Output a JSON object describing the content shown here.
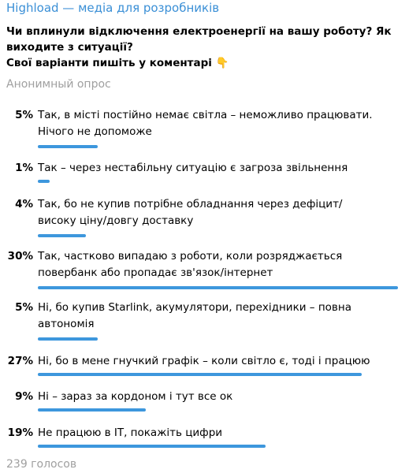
{
  "header": {
    "channel": "Highload — медіа для розробників"
  },
  "question": {
    "lines": [
      "Чи вплинули відключення електроенергії на вашу роботу? Як",
      "виходите з ситуації?",
      "Свої варіанти пишіть у коментарі 👇"
    ]
  },
  "poll_type": "Анонимный опрос",
  "options": [
    {
      "value": 5,
      "value_label": "5%",
      "lines": [
        "Так, в місті постійно немає світла – неможливо працювати.",
        "Нічого не допоможе"
      ]
    },
    {
      "value": 1,
      "value_label": "1%",
      "lines": [
        "Так – через нестабільну ситуацію є загроза звільнення"
      ]
    },
    {
      "value": 4,
      "value_label": "4%",
      "lines": [
        "Так, бо не купив потрібне обладнання через дефіцит/",
        "високу ціну/довгу доставку"
      ]
    },
    {
      "value": 30,
      "value_label": "30%",
      "lines": [
        "Так, частково випадаю з роботи, коли розряджається",
        "повербанк або пропадає зв'язок/інтернет"
      ]
    },
    {
      "value": 5,
      "value_label": "5%",
      "lines": [
        "Ні, бо купив Starlink, акумулятори, перехідники – повна",
        "автономія"
      ]
    },
    {
      "value": 27,
      "value_label": "27%",
      "lines": [
        "Ні, бо в мене гнучкий графік – коли світло є, тоді і працюю"
      ]
    },
    {
      "value": 9,
      "value_label": "9%",
      "lines": [
        "Ні – зараз за кордоном і тут все ок"
      ]
    },
    {
      "value": 19,
      "value_label": "19%",
      "lines": [
        "Не працюю в IT, покажіть цифри"
      ]
    }
  ],
  "footer": {
    "votes": "239 голосов"
  }
}
